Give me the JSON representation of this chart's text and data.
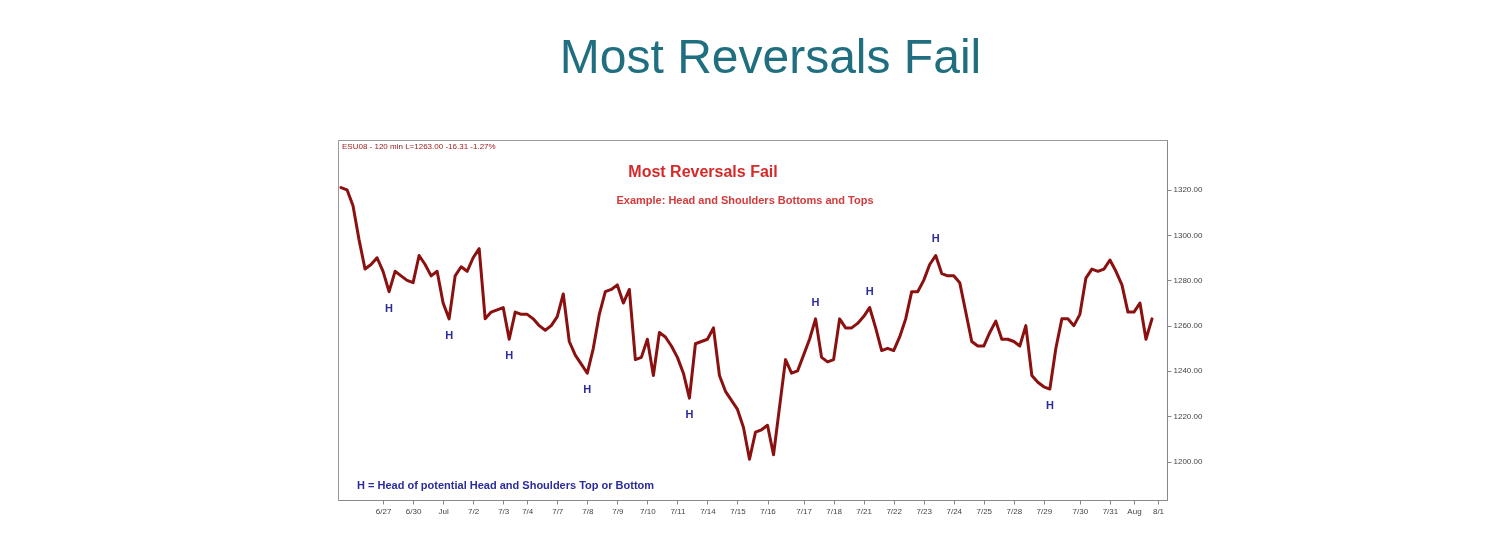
{
  "chart_data": {
    "type": "line",
    "title": "Most Reversals Fail",
    "categories": [
      null,
      null,
      null,
      null,
      null,
      null,
      null,
      "6/27",
      null,
      null,
      null,
      null,
      "6/30",
      null,
      null,
      null,
      null,
      "Jul",
      null,
      null,
      null,
      null,
      "7/2",
      null,
      null,
      null,
      null,
      "7/3",
      null,
      null,
      null,
      "7/4",
      null,
      null,
      null,
      null,
      "7/7",
      null,
      null,
      null,
      null,
      "7/8",
      null,
      null,
      null,
      null,
      "7/9",
      null,
      null,
      null,
      null,
      "7/10",
      null,
      null,
      null,
      null,
      "7/11",
      null,
      null,
      null,
      null,
      "7/14",
      null,
      null,
      null,
      null,
      "7/15",
      null,
      null,
      null,
      null,
      "7/16",
      null,
      null,
      null,
      null,
      null,
      "7/17",
      null,
      null,
      null,
      null,
      "7/18",
      null,
      null,
      null,
      null,
      "7/21",
      null,
      null,
      null,
      null,
      "7/22",
      null,
      null,
      null,
      null,
      "7/23",
      null,
      null,
      null,
      null,
      "7/24",
      null,
      null,
      null,
      null,
      "7/25",
      null,
      null,
      null,
      null,
      "7/28",
      null,
      null,
      null,
      null,
      "7/29",
      null,
      null,
      null,
      null,
      null,
      "7/30",
      null,
      null,
      null,
      null,
      "7/31",
      null,
      null,
      null,
      "Aug",
      null,
      null,
      null,
      "8/1",
      null
    ],
    "series": [
      {
        "color": "#8b1010",
        "values": [
          1321,
          1320,
          1313,
          1298,
          1285,
          1287,
          1290,
          1284,
          1275,
          1284,
          1282,
          1280,
          1279,
          1291,
          1287,
          1282,
          1284,
          1270,
          1263,
          1282,
          1286,
          1284,
          1290,
          1294,
          1263,
          1266,
          1267,
          1268,
          1254,
          1266,
          1265,
          1265,
          1263,
          1260,
          1258,
          1260,
          1264,
          1274,
          1253,
          1247,
          1243,
          1239,
          1250,
          1265,
          1275,
          1276,
          1278,
          1270,
          1276,
          1245,
          1246,
          1254,
          1238,
          1257,
          1255,
          1251,
          1246,
          1239,
          1228,
          1252,
          1253,
          1254,
          1259,
          1238,
          1231,
          1227,
          1223,
          1215,
          1201,
          1213,
          1214,
          1216,
          1203,
          1224,
          1245,
          1239,
          1240,
          1247,
          1254,
          1263,
          1246,
          1244,
          1245,
          1263,
          1259,
          1259,
          1261,
          1264,
          1268,
          1259,
          1249,
          1250,
          1249,
          1255,
          1263,
          1275,
          1275,
          1280,
          1287,
          1291,
          1283,
          1282,
          1282,
          1279,
          1266,
          1253,
          1251,
          1251,
          1257,
          1262,
          1254,
          1254,
          1253,
          1251,
          1260,
          1238,
          1235,
          1233,
          1232,
          1250,
          1263,
          1263,
          1260,
          1265,
          1281,
          1285,
          1284,
          1285,
          1289,
          1284,
          1278,
          1266,
          1266,
          1270,
          1254,
          1263,
          null,
          null
        ],
        "value_labels": [
          null,
          null,
          null,
          null,
          null,
          null,
          null,
          null,
          "H",
          null,
          null,
          null,
          null,
          null,
          null,
          null,
          null,
          null,
          "H",
          null,
          null,
          null,
          null,
          null,
          null,
          null,
          null,
          null,
          "H",
          null,
          null,
          null,
          null,
          null,
          null,
          null,
          null,
          null,
          null,
          null,
          null,
          "H",
          null,
          null,
          null,
          null,
          null,
          null,
          null,
          null,
          null,
          null,
          null,
          null,
          null,
          null,
          null,
          null,
          "H",
          null,
          null,
          null,
          null,
          null,
          null,
          null,
          null,
          null,
          null,
          null,
          null,
          null,
          null,
          null,
          null,
          null,
          null,
          null,
          null,
          "H",
          null,
          null,
          null,
          null,
          null,
          null,
          null,
          null,
          "H",
          null,
          null,
          null,
          null,
          null,
          null,
          null,
          null,
          null,
          null,
          "H",
          null,
          null,
          null,
          null,
          null,
          null,
          null,
          null,
          null,
          null,
          null,
          null,
          null,
          null,
          null,
          null,
          null,
          null,
          "H",
          null,
          null,
          null,
          null,
          null,
          null,
          null,
          null,
          null,
          null,
          null,
          null,
          null,
          null,
          null,
          null,
          null,
          null,
          null
        ]
      }
    ],
    "ylim": [
      1183,
      1342
    ],
    "yticks": [
      {
        "value": 1200,
        "label": "1200.00"
      },
      {
        "value": 1220,
        "label": "1220.00"
      },
      {
        "value": 1240,
        "label": "1240.00"
      },
      {
        "value": 1260,
        "label": "1260.00"
      },
      {
        "value": 1280,
        "label": "1280.00"
      },
      {
        "value": 1300,
        "label": "1300.00"
      },
      {
        "value": 1320,
        "label": "1320.00"
      }
    ],
    "annotations": [
      "ESU08 - 120 min  L=1263.00  -16.31  -1.27%",
      "Most  Reversals Fail",
      "Example: Head and Shoulders Bottoms and Tops",
      "H = Head of potential Head and Shoulders Top or Bottom"
    ]
  }
}
